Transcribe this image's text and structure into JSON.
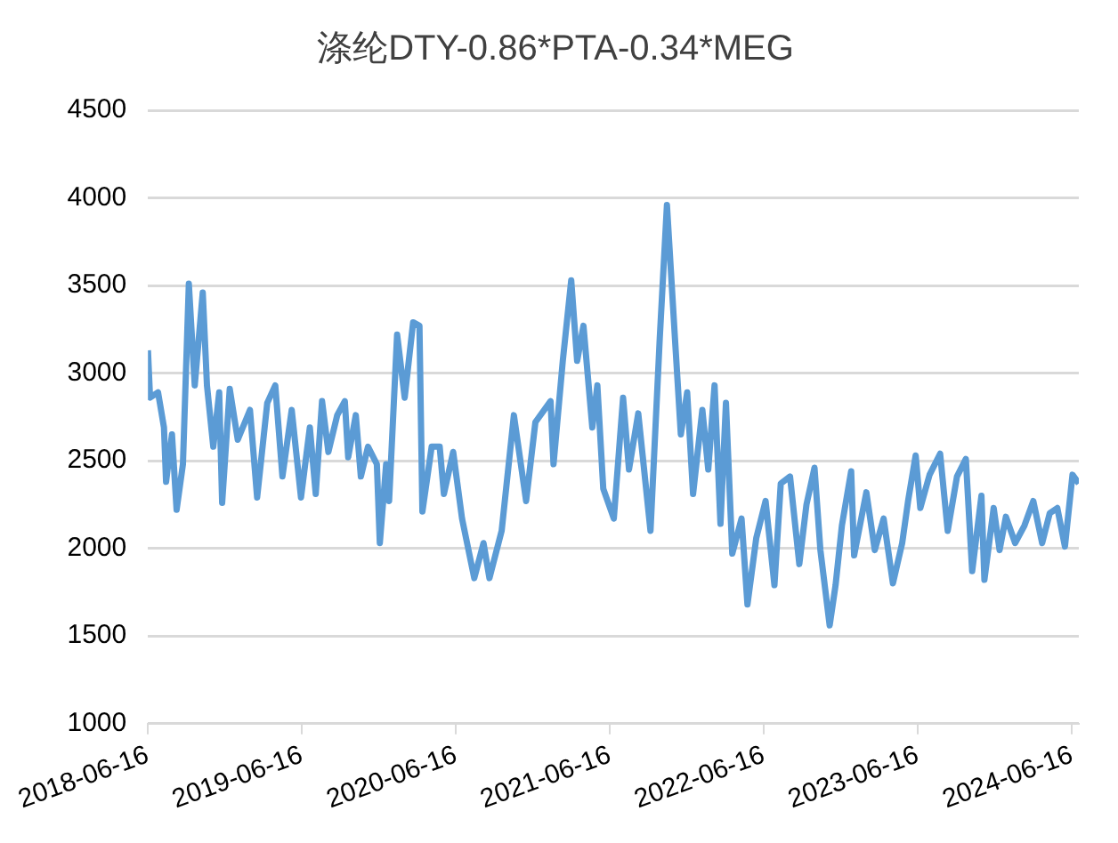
{
  "chart_data": {
    "type": "line",
    "title": "涤纶DTY-0.86*PTA-0.34*MEG",
    "x": [
      "2018-06-16",
      "2018-06-21",
      "2018-07-10",
      "2018-07-24",
      "2018-07-29",
      "2018-08-12",
      "2018-08-23",
      "2018-09-07",
      "2018-09-21",
      "2018-10-05",
      "2018-10-24",
      "2018-11-03",
      "2018-11-18",
      "2018-12-02",
      "2018-12-09",
      "2018-12-27",
      "2019-01-15",
      "2019-02-13",
      "2019-03-02",
      "2019-03-26",
      "2019-04-14",
      "2019-05-01",
      "2019-05-23",
      "2019-06-14",
      "2019-07-05",
      "2019-07-19",
      "2019-08-03",
      "2019-08-18",
      "2019-09-08",
      "2019-09-26",
      "2019-10-04",
      "2019-10-22",
      "2019-11-03",
      "2019-11-20",
      "2019-12-11",
      "2019-12-18",
      "2020-01-02",
      "2020-01-09",
      "2020-01-28",
      "2020-02-15",
      "2020-03-06",
      "2020-03-21",
      "2020-03-28",
      "2020-04-19",
      "2020-05-08",
      "2020-05-18",
      "2020-06-09",
      "2020-06-30",
      "2020-07-29",
      "2020-08-20",
      "2020-09-03",
      "2020-10-02",
      "2020-10-31",
      "2020-11-29",
      "2020-12-21",
      "2021-01-26",
      "2021-02-02",
      "2021-02-24",
      "2021-03-16",
      "2021-03-30",
      "2021-04-14",
      "2021-05-05",
      "2021-05-17",
      "2021-05-31",
      "2021-06-25",
      "2021-07-17",
      "2021-07-31",
      "2021-08-22",
      "2021-09-20",
      "2021-10-12",
      "2021-10-29",
      "2021-11-17",
      "2021-12-01",
      "2021-12-16",
      "2021-12-30",
      "2022-01-21",
      "2022-02-04",
      "2022-02-19",
      "2022-03-05",
      "2022-03-18",
      "2022-04-02",
      "2022-04-24",
      "2022-05-08",
      "2022-05-29",
      "2022-06-20",
      "2022-07-11",
      "2022-07-26",
      "2022-08-17",
      "2022-09-08",
      "2022-09-25",
      "2022-10-14",
      "2022-10-28",
      "2022-11-19",
      "2022-12-03",
      "2022-12-18",
      "2023-01-09",
      "2023-01-16",
      "2023-02-14",
      "2023-03-06",
      "2023-03-27",
      "2023-04-18",
      "2023-05-10",
      "2023-05-24",
      "2023-06-11",
      "2023-06-22",
      "2023-07-14",
      "2023-08-08",
      "2023-08-26",
      "2023-09-17",
      "2023-10-08",
      "2023-10-23",
      "2023-11-14",
      "2023-11-21",
      "2023-12-13",
      "2023-12-27",
      "2024-01-11",
      "2024-02-02",
      "2024-02-24",
      "2024-03-16",
      "2024-04-06",
      "2024-04-24",
      "2024-05-12",
      "2024-05-30",
      "2024-06-17",
      "2024-07-02"
    ],
    "series": [
      {
        "color": "#5b9bd5",
        "values": [
          3130,
          2860,
          2890,
          2690,
          2380,
          2650,
          2220,
          2480,
          3510,
          2930,
          3460,
          2930,
          2580,
          2890,
          2260,
          2910,
          2620,
          2790,
          2290,
          2830,
          2930,
          2410,
          2790,
          2290,
          2690,
          2310,
          2840,
          2550,
          2760,
          2840,
          2520,
          2760,
          2410,
          2580,
          2480,
          2030,
          2480,
          2270,
          3220,
          2860,
          3290,
          3270,
          2210,
          2580,
          2580,
          2310,
          2550,
          2170,
          1830,
          2030,
          1830,
          2100,
          2760,
          2270,
          2720,
          2840,
          2480,
          3070,
          3530,
          3070,
          3270,
          2690,
          2930,
          2340,
          2170,
          2860,
          2450,
          2770,
          2100,
          3200,
          3960,
          3200,
          2650,
          2890,
          2310,
          2790,
          2450,
          2930,
          2140,
          2830,
          1970,
          2170,
          1680,
          2060,
          2270,
          1790,
          2370,
          2410,
          1910,
          2250,
          2460,
          1990,
          1560,
          1790,
          2130,
          2440,
          1960,
          2320,
          1990,
          2170,
          1800,
          2030,
          2270,
          2530,
          2230,
          2420,
          2540,
          2100,
          2410,
          2510,
          1870,
          2300,
          1820,
          2230,
          1990,
          2180,
          2030,
          2130,
          2270,
          2030,
          2200,
          2230,
          2010,
          2420,
          2370
        ]
      }
    ],
    "xlim": [
      "2018-06-16",
      "2024-07-02"
    ],
    "xticks": [
      "2018-06-16",
      "2019-06-16",
      "2020-06-16",
      "2021-06-16",
      "2022-06-16",
      "2023-06-16",
      "2024-06-16"
    ],
    "ylim": [
      1000,
      4500
    ],
    "yticks": [
      1000,
      1500,
      2000,
      2500,
      3000,
      3500,
      4000,
      4500
    ],
    "grid": "y",
    "legend": false,
    "marker": "none",
    "line_style": "solid"
  }
}
